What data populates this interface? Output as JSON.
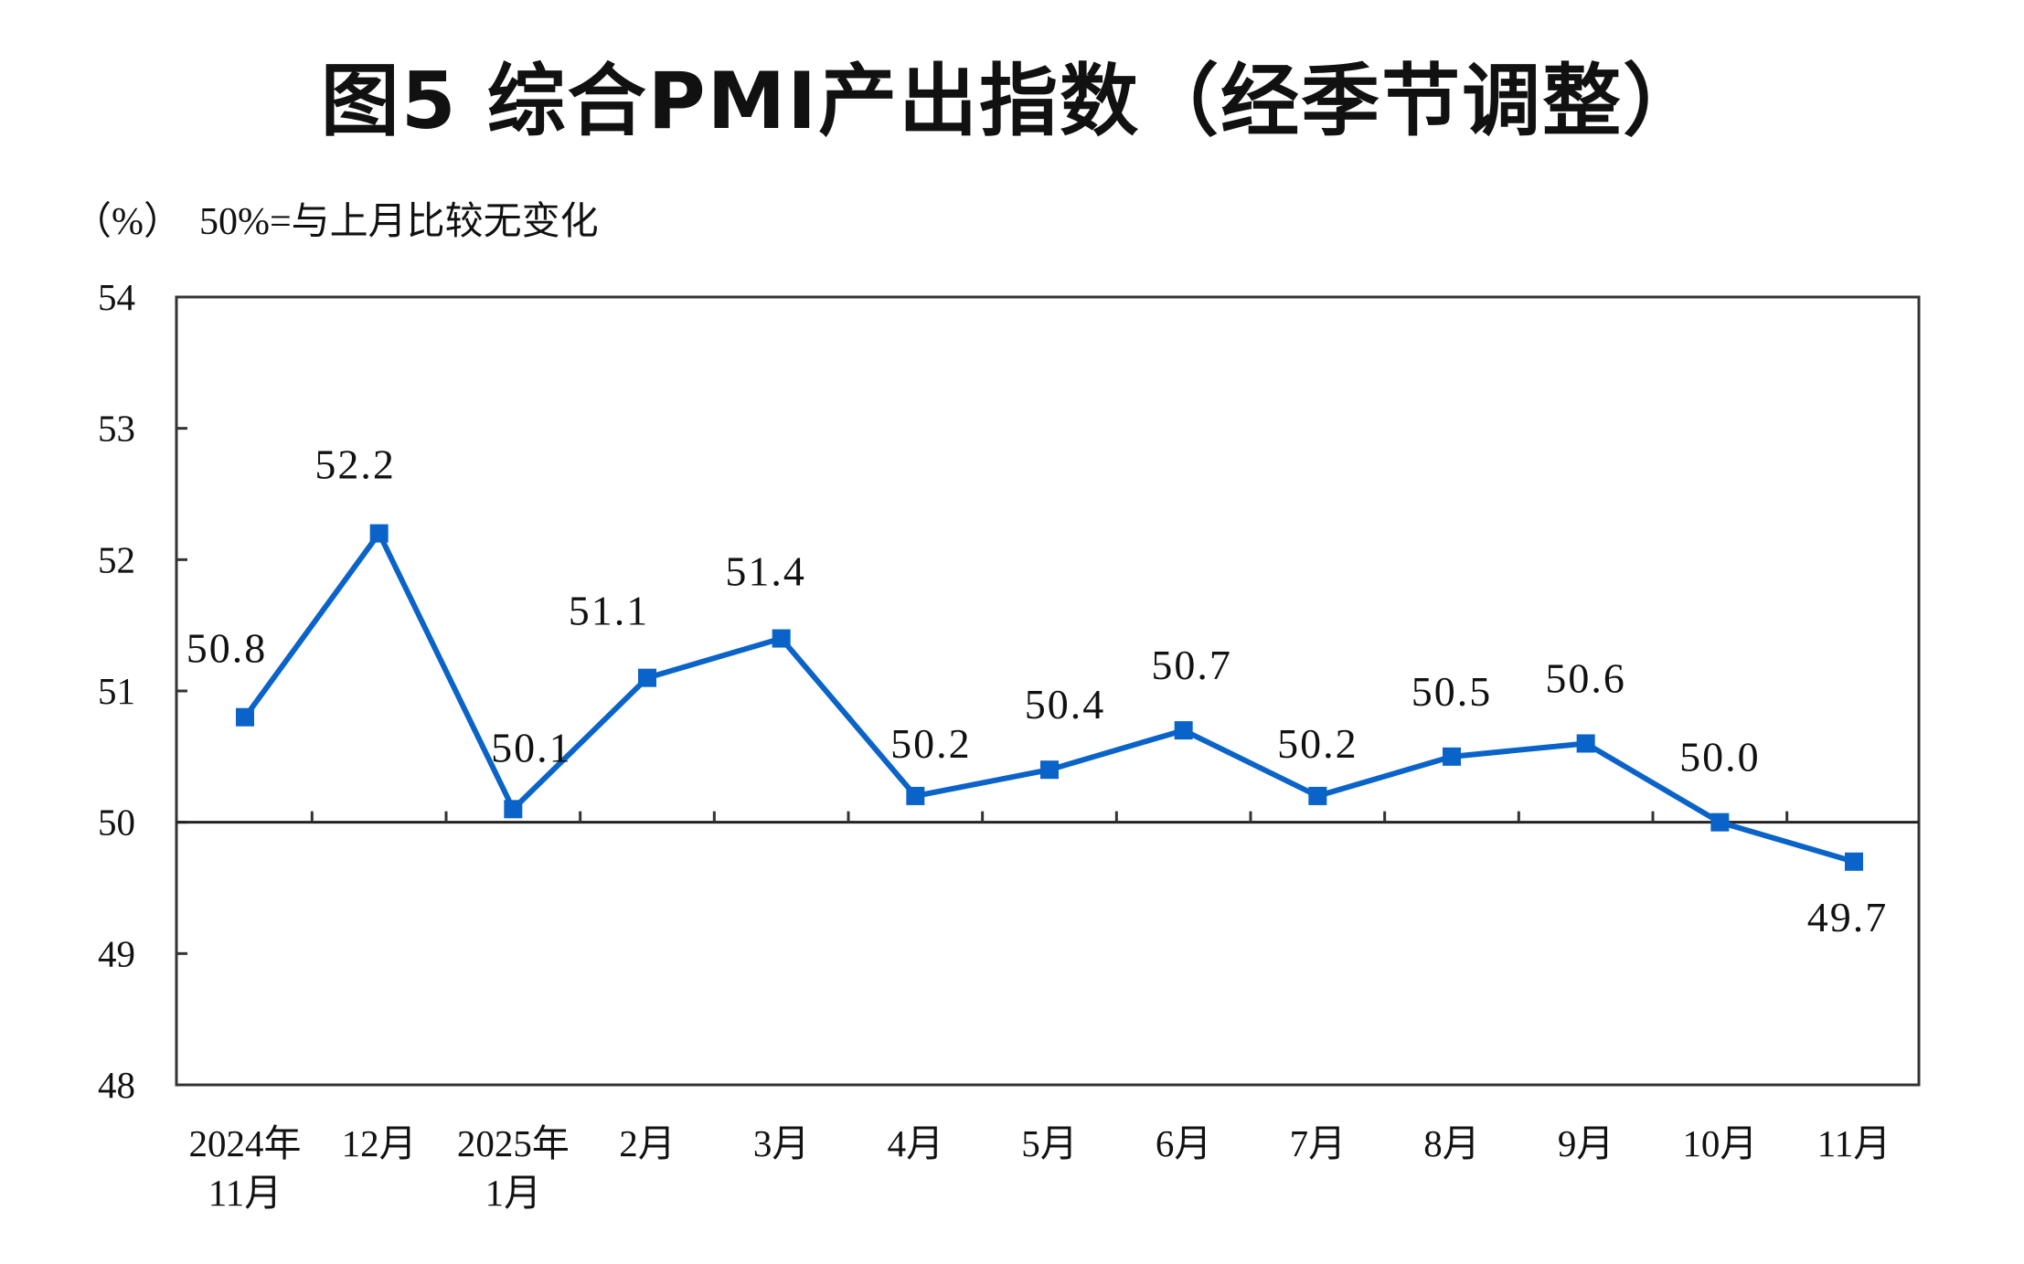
{
  "chart_data": {
    "type": "line",
    "title": "图5  综合PMI产出指数（经季节调整）",
    "ylabel": "（%）",
    "annotation": "50%=与上月比较无变化",
    "categories": [
      [
        "2024年",
        "11月"
      ],
      [
        "12月"
      ],
      [
        "2025年",
        "1月"
      ],
      [
        "2月"
      ],
      [
        "3月"
      ],
      [
        "4月"
      ],
      [
        "5月"
      ],
      [
        "6月"
      ],
      [
        "7月"
      ],
      [
        "8月"
      ],
      [
        "9月"
      ],
      [
        "10月"
      ],
      [
        "11月"
      ]
    ],
    "values": [
      50.8,
      52.2,
      50.1,
      51.1,
      51.4,
      50.2,
      50.4,
      50.7,
      50.2,
      50.5,
      50.6,
      50.0,
      49.7
    ],
    "data_labels": [
      "50.8",
      "52.2",
      "50.1",
      "51.1",
      "51.4",
      "50.2",
      "50.4",
      "50.7",
      "50.2",
      "50.5",
      "50.6",
      "50.0",
      "49.7"
    ],
    "ylim": [
      48,
      54
    ],
    "yticks": [
      "48",
      "49",
      "50",
      "51",
      "52",
      "53",
      "54"
    ],
    "reference_line": 50,
    "grid": false,
    "line_color": "#0A63C9",
    "marker": "square"
  }
}
